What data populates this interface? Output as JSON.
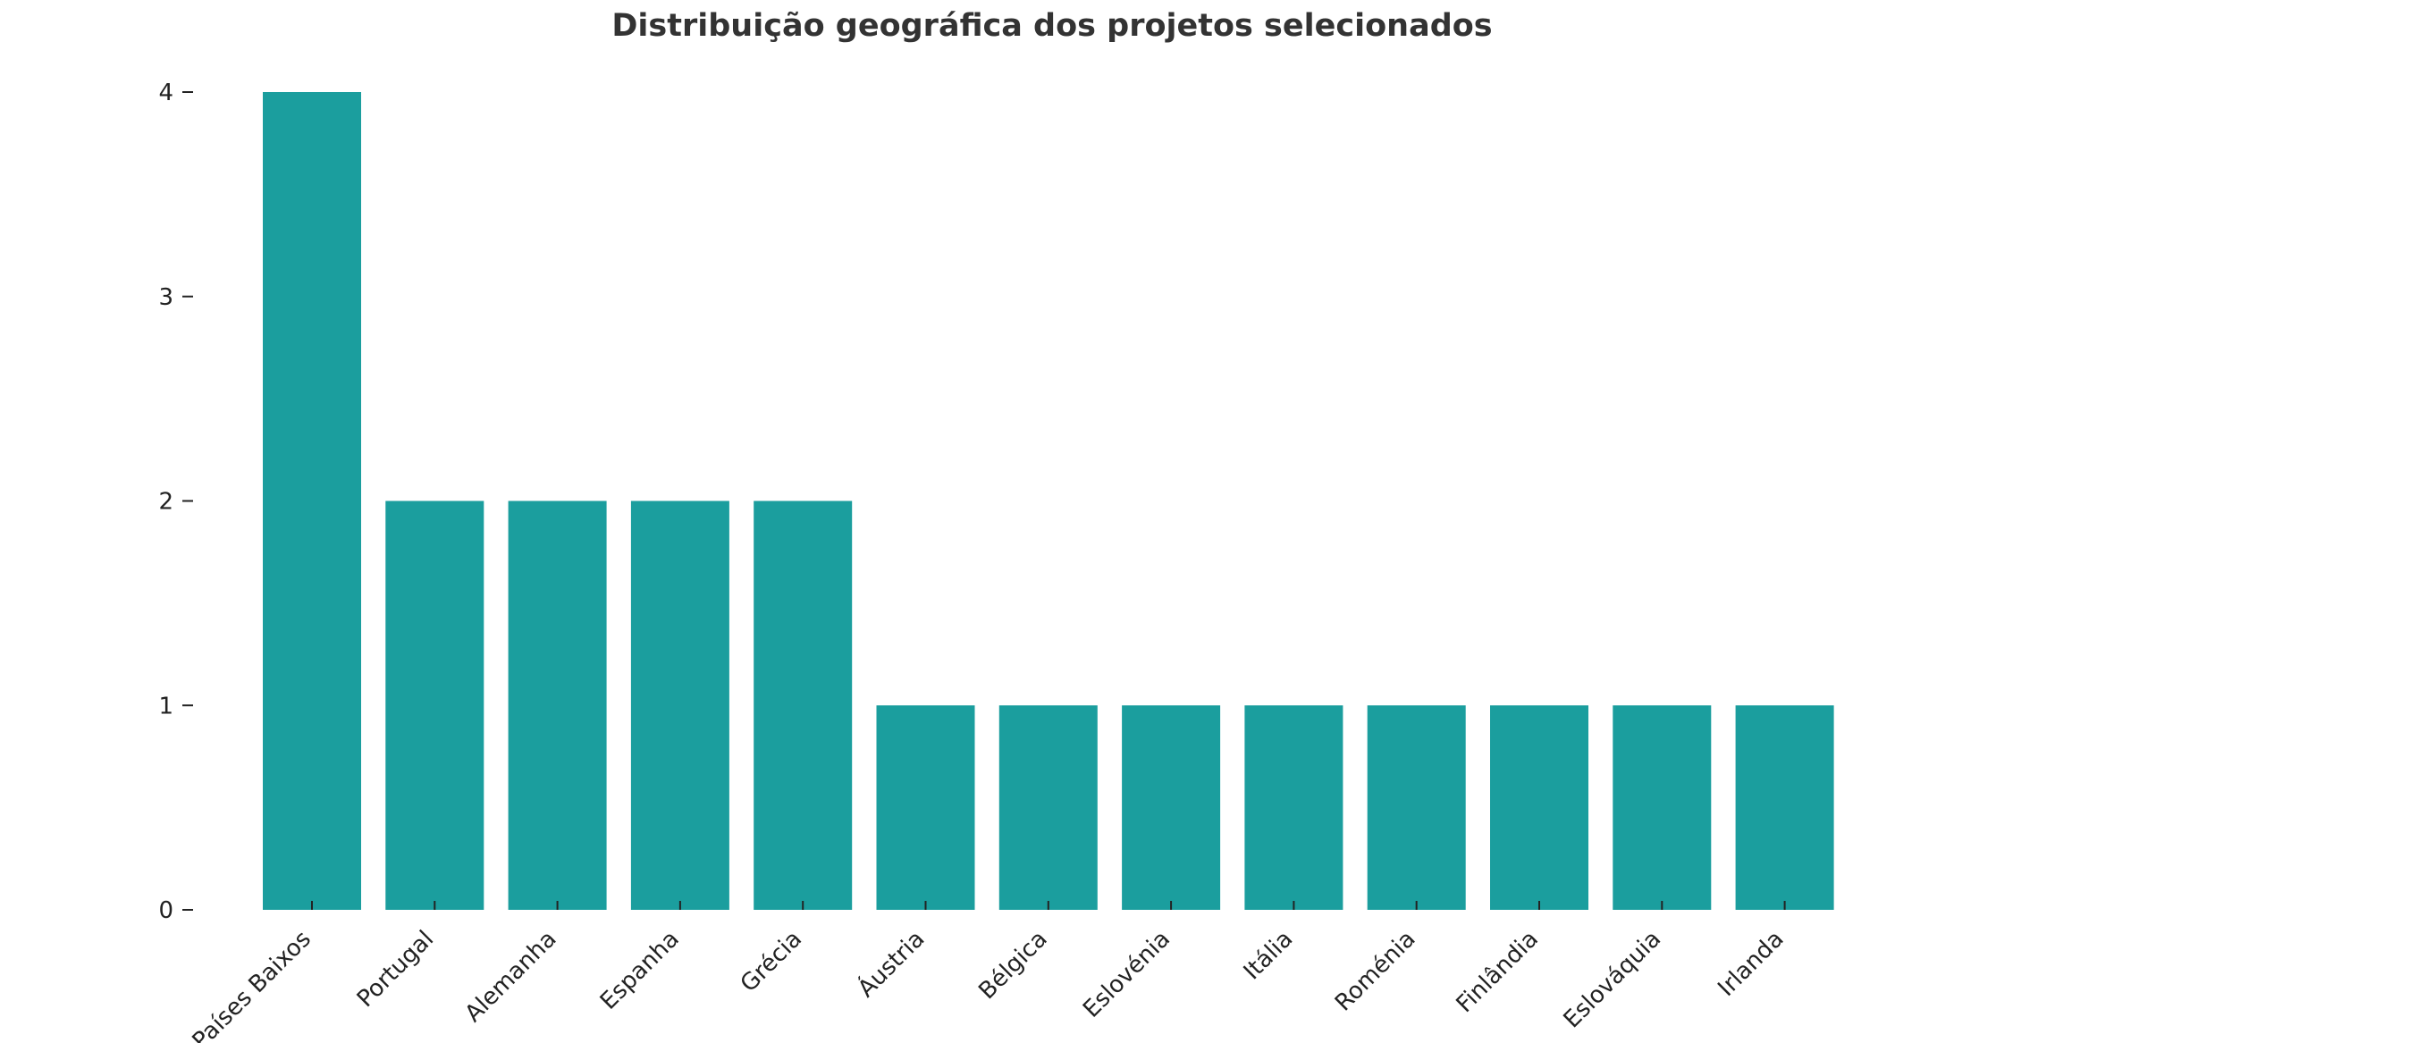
{
  "chart_data": {
    "type": "bar",
    "title": "Distribuição geográfica dos projetos selecionados",
    "xlabel": "",
    "ylabel": "",
    "categories": [
      "Países Baixos",
      "Portugal",
      "Alemanha",
      "Espanha",
      "Grécia",
      "Áustria",
      "Bélgica",
      "Eslovénia",
      "Itália",
      "Roménia",
      "Finlândia",
      "Eslováquia",
      "Irlanda"
    ],
    "values": [
      4,
      2,
      2,
      2,
      2,
      1,
      1,
      1,
      1,
      1,
      1,
      1,
      1
    ],
    "ylim": [
      0,
      4
    ],
    "yticks": [
      0,
      1,
      2,
      3,
      4
    ],
    "bar_color": "#1b9e9e",
    "grid": false,
    "legend": "none"
  }
}
